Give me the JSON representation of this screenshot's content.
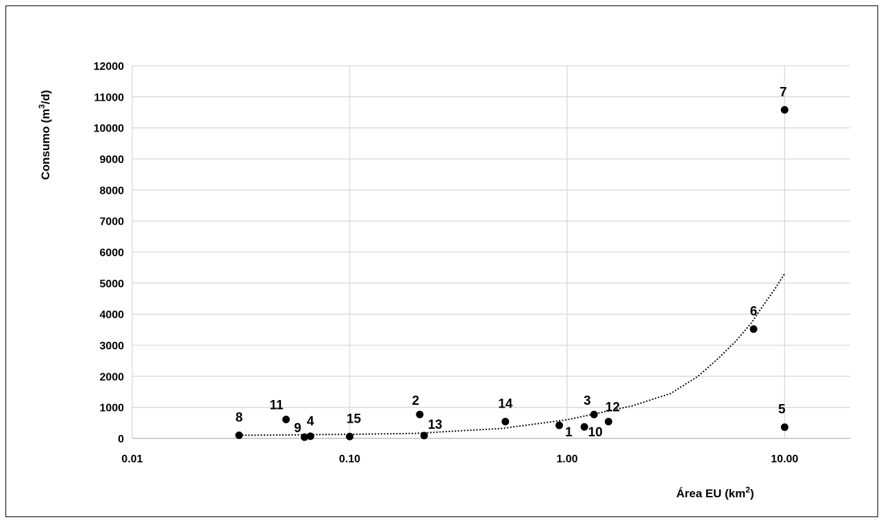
{
  "chart_data": {
    "type": "scatter",
    "title": "",
    "xlabel": {
      "pre": "Área EU (km",
      "sup": "2",
      "post": ")"
    },
    "ylabel": {
      "pre": "Consumo  (m",
      "sup": "3",
      "post": "/d)"
    },
    "x_scale": "log",
    "xlim": [
      0.01,
      20
    ],
    "ylim": [
      0,
      12000
    ],
    "x_ticks": [
      {
        "value": 0.01,
        "label": "0.01"
      },
      {
        "value": 0.1,
        "label": "0.10"
      },
      {
        "value": 1,
        "label": "1.00"
      },
      {
        "value": 10,
        "label": "10.00"
      }
    ],
    "y_ticks": [
      0,
      1000,
      2000,
      3000,
      4000,
      5000,
      6000,
      7000,
      8000,
      9000,
      10000,
      11000,
      12000
    ],
    "grid": "vertical and horizontal",
    "legend": "none",
    "colors": {
      "grid": "#d9d9d9",
      "points": "#000000",
      "trendline": "#000000"
    },
    "points": [
      {
        "label": "1",
        "x": 0.92,
        "y": 420
      },
      {
        "label": "2",
        "x": 0.21,
        "y": 770
      },
      {
        "label": "3",
        "x": 1.33,
        "y": 770
      },
      {
        "label": "4",
        "x": 0.066,
        "y": 70
      },
      {
        "label": "5",
        "x": 10.0,
        "y": 360
      },
      {
        "label": "6",
        "x": 7.2,
        "y": 3520
      },
      {
        "label": "7",
        "x": 10.0,
        "y": 10580
      },
      {
        "label": "8",
        "x": 0.031,
        "y": 100
      },
      {
        "label": "9",
        "x": 0.062,
        "y": 40
      },
      {
        "label": "10",
        "x": 1.2,
        "y": 370
      },
      {
        "label": "11",
        "x": 0.051,
        "y": 610
      },
      {
        "label": "12",
        "x": 1.55,
        "y": 540
      },
      {
        "label": "13",
        "x": 0.22,
        "y": 90
      },
      {
        "label": "14",
        "x": 0.52,
        "y": 540
      },
      {
        "label": "15",
        "x": 0.1,
        "y": 60
      }
    ],
    "trendline": {
      "style": "dotted",
      "type": "exponential",
      "x": [
        0.031,
        0.05,
        0.1,
        0.2,
        0.5,
        1,
        2,
        3,
        4,
        5,
        6,
        7,
        8,
        9,
        10
      ],
      "y": [
        100,
        110,
        130,
        160,
        320,
        600,
        1050,
        1450,
        2000,
        2600,
        3150,
        3700,
        4300,
        4800,
        5300
      ]
    }
  }
}
